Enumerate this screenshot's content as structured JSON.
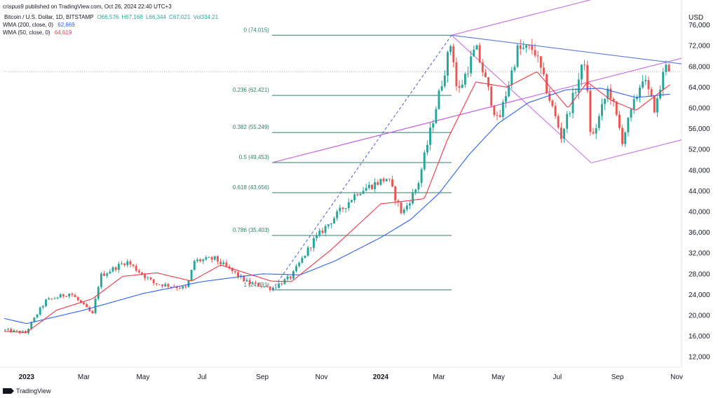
{
  "header": {
    "published": "crispus9 published on TradingView.com, Oct 26, 2024 22:40 UTC+3"
  },
  "legend": {
    "symbol": "Bitcoin / U.S. Dollar, 1D, BITSTAMP",
    "open": "O66,576",
    "high": "H67,168",
    "low": "L66,344",
    "close": "C67,021",
    "volume": "Vol334.21",
    "wma200_label": "WMA (200, close, 0)",
    "wma200_value": "62,669",
    "wma50_label": "WMA (50, close, 0)",
    "wma50_value": "64,619"
  },
  "branding": {
    "logo_text": "TradingView"
  },
  "colors": {
    "up": "#26a69a",
    "down": "#ef5350",
    "wma200": "#2962ff",
    "wma50": "#f23645",
    "pitchfork": "#c561e6",
    "fib": "#2e7d6b",
    "trend": "#5b77e6"
  },
  "chart_data": {
    "type": "candlestick",
    "currency": "USD",
    "ylim": [
      10000,
      80000
    ],
    "y_ticks": [
      "12,000",
      "16,000",
      "20,000",
      "24,000",
      "28,000",
      "32,000",
      "36,000",
      "40,000",
      "44,000",
      "48,000",
      "52,000",
      "56,000",
      "60,000",
      "64,000",
      "68,000",
      "72,000",
      "76,000"
    ],
    "y_tick_values": [
      12000,
      16000,
      20000,
      24000,
      28000,
      32000,
      36000,
      40000,
      44000,
      48000,
      52000,
      56000,
      60000,
      64000,
      68000,
      72000,
      76000
    ],
    "x_range": [
      "2022-12-09",
      "2024-11-06"
    ],
    "x_ticks": [
      {
        "label": "2023",
        "date": "2023-01-01",
        "bold": true
      },
      {
        "label": "Mar",
        "date": "2023-03-01"
      },
      {
        "label": "May",
        "date": "2023-05-01"
      },
      {
        "label": "Jul",
        "date": "2023-07-01"
      },
      {
        "label": "Sep",
        "date": "2023-09-01"
      },
      {
        "label": "Nov",
        "date": "2023-11-01"
      },
      {
        "label": "2024",
        "date": "2024-01-01",
        "bold": true
      },
      {
        "label": "Mar",
        "date": "2024-03-01"
      },
      {
        "label": "May",
        "date": "2024-05-01"
      },
      {
        "label": "Jul",
        "date": "2024-07-01"
      },
      {
        "label": "Sep",
        "date": "2024-09-01"
      },
      {
        "label": "Nov",
        "date": "2024-11-01"
      }
    ],
    "last_price": 67021,
    "price_keypoints": [
      [
        "2022-12-10",
        17150
      ],
      [
        "2022-12-31",
        16600
      ],
      [
        "2023-01-14",
        20900
      ],
      [
        "2023-01-21",
        22800
      ],
      [
        "2023-02-15",
        24300
      ],
      [
        "2023-03-10",
        20200
      ],
      [
        "2023-03-18",
        27600
      ],
      [
        "2023-04-14",
        30400
      ],
      [
        "2023-05-12",
        26200
      ],
      [
        "2023-06-15",
        25200
      ],
      [
        "2023-06-23",
        30500
      ],
      [
        "2023-07-14",
        30900
      ],
      [
        "2023-08-17",
        26300
      ],
      [
        "2023-09-11",
        25200
      ],
      [
        "2023-10-01",
        27500
      ],
      [
        "2023-10-24",
        34500
      ],
      [
        "2023-12-08",
        43800
      ],
      [
        "2024-01-08",
        46500
      ],
      [
        "2024-01-23",
        39500
      ],
      [
        "2024-02-08",
        45000
      ],
      [
        "2024-02-28",
        61000
      ],
      [
        "2024-03-14",
        73000
      ],
      [
        "2024-03-20",
        62500
      ],
      [
        "2024-04-08",
        71600
      ],
      [
        "2024-05-01",
        57000
      ],
      [
        "2024-05-21",
        71200
      ],
      [
        "2024-06-07",
        71400
      ],
      [
        "2024-07-05",
        54500
      ],
      [
        "2024-07-29",
        69200
      ],
      [
        "2024-08-05",
        53500
      ],
      [
        "2024-08-23",
        64000
      ],
      [
        "2024-09-06",
        53800
      ],
      [
        "2024-09-27",
        66000
      ],
      [
        "2024-10-10",
        59500
      ],
      [
        "2024-10-21",
        69000
      ],
      [
        "2024-10-26",
        67021
      ]
    ],
    "wma200_keypoints": [
      [
        "2022-12-09",
        19400
      ],
      [
        "2023-01-01",
        18400
      ],
      [
        "2023-03-01",
        21000
      ],
      [
        "2023-05-01",
        24200
      ],
      [
        "2023-07-01",
        26500
      ],
      [
        "2023-09-01",
        28000
      ],
      [
        "2023-10-10",
        27800
      ],
      [
        "2023-11-15",
        30500
      ],
      [
        "2024-01-01",
        35000
      ],
      [
        "2024-02-01",
        38500
      ],
      [
        "2024-03-01",
        43500
      ],
      [
        "2024-04-01",
        51000
      ],
      [
        "2024-05-01",
        57000
      ],
      [
        "2024-06-01",
        61000
      ],
      [
        "2024-07-10",
        63500
      ],
      [
        "2024-08-15",
        63800
      ],
      [
        "2024-09-20",
        62000
      ],
      [
        "2024-10-26",
        62669
      ]
    ],
    "wma50_keypoints": [
      [
        "2022-12-09",
        16900
      ],
      [
        "2023-01-01",
        16700
      ],
      [
        "2023-02-01",
        21000
      ],
      [
        "2023-03-10",
        23200
      ],
      [
        "2023-04-10",
        27500
      ],
      [
        "2023-05-15",
        28200
      ],
      [
        "2023-06-20",
        26600
      ],
      [
        "2023-07-20",
        29700
      ],
      [
        "2023-09-10",
        26600
      ],
      [
        "2023-10-01",
        26500
      ],
      [
        "2023-11-10",
        32500
      ],
      [
        "2024-01-01",
        41500
      ],
      [
        "2024-01-25",
        42000
      ],
      [
        "2024-02-15",
        42500
      ],
      [
        "2024-03-10",
        54000
      ],
      [
        "2024-04-08",
        65000
      ],
      [
        "2024-05-10",
        64000
      ],
      [
        "2024-06-10",
        67000
      ],
      [
        "2024-07-12",
        60000
      ],
      [
        "2024-08-01",
        65000
      ],
      [
        "2024-08-25",
        61500
      ],
      [
        "2024-09-20",
        59500
      ],
      [
        "2024-10-26",
        64619
      ]
    ],
    "fibonacci": {
      "start": "2023-09-11",
      "end": "2024-03-14",
      "levels": [
        {
          "label": "0 (74,015)",
          "price": 74015
        },
        {
          "label": "0.236 (62,421)",
          "price": 62421
        },
        {
          "label": "0.382 (55,249)",
          "price": 55249
        },
        {
          "label": "0.5 (49,453)",
          "price": 49453
        },
        {
          "label": "0.618 (43,656)",
          "price": 43656
        },
        {
          "label": "0.786 (35,403)",
          "price": 35403
        },
        {
          "label": "1 (24,891)",
          "price": 24891
        }
      ]
    },
    "trendlines": [
      {
        "name": "fib-diagonal",
        "from": [
          "2023-09-11",
          24891
        ],
        "to": [
          "2024-03-14",
          74015
        ],
        "style": "dashed",
        "color": "#5b6bd6"
      },
      {
        "name": "resistance",
        "from": [
          "2024-03-14",
          74015
        ],
        "to": [
          "2024-11-06",
          68500
        ],
        "style": "solid",
        "color": "#5b77e6"
      }
    ],
    "pitchfork": {
      "p0": [
        "2023-09-11",
        49453
      ],
      "p1": [
        "2024-03-14",
        74015
      ],
      "p2": [
        "2024-08-05",
        49400
      ]
    }
  }
}
